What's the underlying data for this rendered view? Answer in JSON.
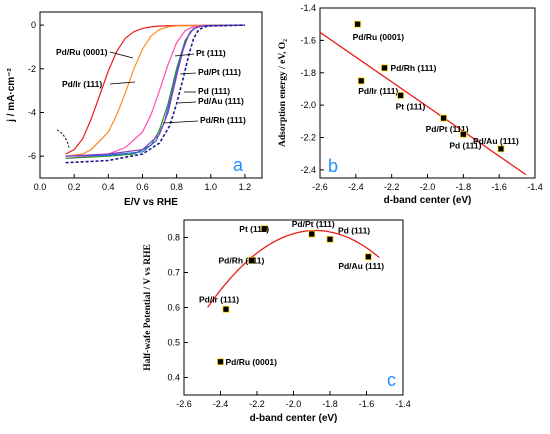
{
  "colors": {
    "fit_line": "#e8201a",
    "marker_fill": "#000000",
    "marker_edge": "#ffd400",
    "panel_letter": "#1e90ff",
    "axis": "#000000"
  },
  "chart_data": [
    {
      "panel": "a",
      "type": "line",
      "xlabel": "E/V vs RHE",
      "ylabel": "j / mA·cm⁻²",
      "xlim": [
        0.0,
        1.3
      ],
      "ylim": [
        -7,
        0.6
      ],
      "xticks": [
        "0.0",
        "0.2",
        "0.4",
        "0.6",
        "0.8",
        "1.0",
        "1.2"
      ],
      "yticks": [
        "0",
        "-2",
        "-4",
        "-6"
      ],
      "grid": false,
      "series": [
        {
          "name": "Pd/Ru (0001)",
          "color": "#e8201a",
          "dash": false,
          "x": [
            0.15,
            0.2,
            0.25,
            0.3,
            0.35,
            0.4,
            0.45,
            0.5,
            0.55,
            0.6,
            0.65,
            0.7,
            0.8,
            1.2
          ],
          "y": [
            -5.9,
            -5.7,
            -5.2,
            -4.3,
            -3.2,
            -2.1,
            -1.2,
            -0.6,
            -0.3,
            -0.15,
            -0.08,
            -0.04,
            -0.02,
            0
          ]
        },
        {
          "name": "Pd/Ir (111)",
          "color": "#ff8c1a",
          "dash": false,
          "x": [
            0.15,
            0.25,
            0.3,
            0.4,
            0.45,
            0.5,
            0.55,
            0.6,
            0.65,
            0.7,
            0.75,
            0.8,
            1.2
          ],
          "y": [
            -6.0,
            -5.9,
            -5.7,
            -4.9,
            -4.1,
            -3.1,
            -2.0,
            -1.1,
            -0.5,
            -0.2,
            -0.08,
            -0.03,
            0
          ]
        },
        {
          "name": "Pd/Rh (111)",
          "color": "#ff4fb0",
          "dash": false,
          "x": [
            0.15,
            0.3,
            0.4,
            0.5,
            0.6,
            0.65,
            0.7,
            0.75,
            0.8,
            0.85,
            0.9,
            1.2
          ],
          "y": [
            -6.1,
            -6.0,
            -5.9,
            -5.6,
            -4.9,
            -4.1,
            -3.0,
            -1.8,
            -0.8,
            -0.25,
            -0.06,
            0
          ]
        },
        {
          "name": "Pd/Au (111)",
          "color": "#2e8b2e",
          "dash": false,
          "x": [
            0.15,
            0.4,
            0.55,
            0.65,
            0.7,
            0.75,
            0.8,
            0.85,
            0.9,
            0.95,
            1.2
          ],
          "y": [
            -6.1,
            -6.0,
            -5.9,
            -5.5,
            -4.8,
            -3.6,
            -2.0,
            -0.7,
            -0.15,
            -0.03,
            0
          ]
        },
        {
          "name": "Pd (111)",
          "color": "#1a66e8",
          "dash": false,
          "x": [
            0.15,
            0.4,
            0.6,
            0.68,
            0.73,
            0.77,
            0.8,
            0.84,
            0.88,
            0.92,
            0.97,
            1.2
          ],
          "y": [
            -6.0,
            -5.95,
            -5.8,
            -5.3,
            -4.4,
            -3.2,
            -2.2,
            -1.0,
            -0.3,
            -0.08,
            -0.02,
            0
          ]
        },
        {
          "name": "Pd/Pt (111)",
          "color": "#8a3ac8",
          "dash": false,
          "x": [
            0.15,
            0.4,
            0.6,
            0.7,
            0.75,
            0.78,
            0.81,
            0.84,
            0.87,
            0.9,
            0.95,
            1.2
          ],
          "y": [
            -6.0,
            -5.9,
            -5.7,
            -5.0,
            -4.0,
            -3.0,
            -2.0,
            -1.1,
            -0.45,
            -0.15,
            -0.03,
            0
          ]
        },
        {
          "name": "Pt (111)",
          "color": "#1a1a8a",
          "dash": true,
          "x": [
            0.15,
            0.4,
            0.6,
            0.7,
            0.76,
            0.8,
            0.84,
            0.87,
            0.9,
            0.93,
            0.98,
            1.2
          ],
          "y": [
            -6.3,
            -6.2,
            -5.9,
            -5.4,
            -4.6,
            -3.6,
            -2.4,
            -1.4,
            -0.6,
            -0.2,
            -0.04,
            0
          ]
        }
      ]
    },
    {
      "panel": "b",
      "type": "scatter",
      "xlabel": "d-band center (eV)",
      "ylabel": "Adsorption energy / eV, O₂",
      "xlim": [
        -2.6,
        -1.4
      ],
      "ylim": [
        -2.45,
        -1.4
      ],
      "xticks": [
        "-2.6",
        "-2.4",
        "-2.2",
        "-2.0",
        "-1.8",
        "-1.6",
        "-1.4"
      ],
      "yticks": [
        "-1.4",
        "-1.6",
        "-1.8",
        "-2.0",
        "-2.2",
        "-2.4"
      ],
      "grid": false,
      "points": [
        {
          "name": "Pd/Ru (0001)",
          "x": -2.39,
          "y": -1.5
        },
        {
          "name": "Pd/Rh (111)",
          "x": -2.24,
          "y": -1.77
        },
        {
          "name": "Pd/Ir (111)",
          "x": -2.37,
          "y": -1.85
        },
        {
          "name": "Pt (111)",
          "x": -2.15,
          "y": -1.94
        },
        {
          "name": "Pd/Pt (111)",
          "x": -1.91,
          "y": -2.08
        },
        {
          "name": "Pd (111)",
          "x": -1.8,
          "y": -2.18
        },
        {
          "name": "Pd/Au (111)",
          "x": -1.59,
          "y": -2.27
        }
      ],
      "fit": {
        "x": [
          -2.6,
          -1.45
        ],
        "y": [
          -1.55,
          -2.43
        ]
      }
    },
    {
      "panel": "c",
      "type": "scatter",
      "xlabel": "d-band center (eV)",
      "ylabel": "Half-wafe Potential / V vs RHE",
      "xlim": [
        -2.6,
        -1.4
      ],
      "ylim": [
        0.35,
        0.85
      ],
      "xticks": [
        "-2.6",
        "-2.4",
        "-2.2",
        "-2.0",
        "-1.8",
        "-1.6",
        "-1.4"
      ],
      "yticks": [
        "0.4",
        "0.5",
        "0.6",
        "0.7",
        "0.8"
      ],
      "grid": false,
      "points": [
        {
          "name": "Pd/Ru (0001)",
          "x": -2.4,
          "y": 0.445
        },
        {
          "name": "Pd/Ir (111)",
          "x": -2.37,
          "y": 0.595
        },
        {
          "name": "Pd/Rh (111)",
          "x": -2.23,
          "y": 0.735
        },
        {
          "name": "Pt (111)",
          "x": -2.16,
          "y": 0.825
        },
        {
          "name": "Pd/Pt (111)",
          "x": -1.9,
          "y": 0.81
        },
        {
          "name": "Pd (111)",
          "x": -1.8,
          "y": 0.795
        },
        {
          "name": "Pd/Au (111)",
          "x": -1.59,
          "y": 0.745
        }
      ],
      "fit": {
        "type": "quadratic",
        "vertex_x": -1.88,
        "vertex_y": 0.82,
        "a": -0.63,
        "x_range": [
          -2.47,
          -1.53
        ]
      }
    }
  ]
}
